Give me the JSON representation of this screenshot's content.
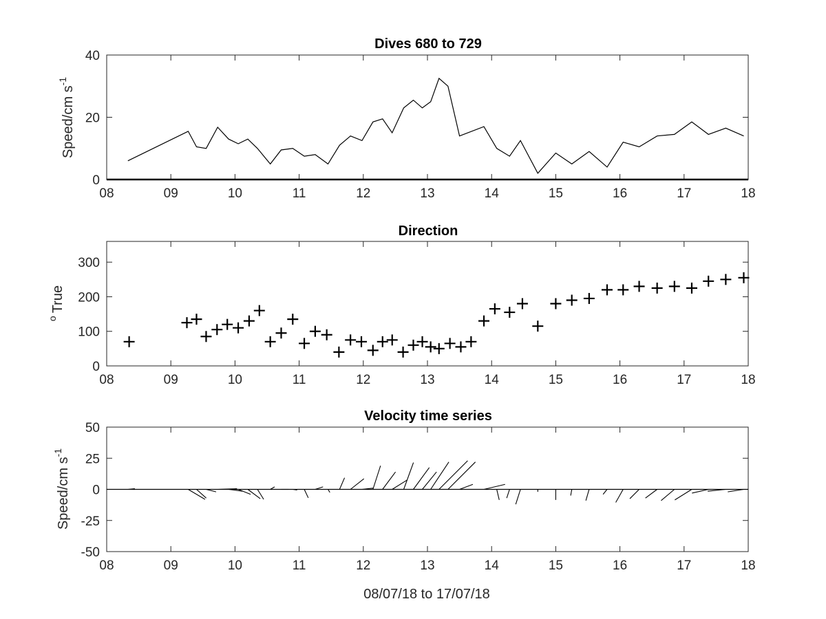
{
  "chart_data": [
    {
      "type": "line",
      "title": "Dives 680 to 729",
      "ylabel": "Speed/cm s",
      "ylabel_superscript": "-1",
      "xlabel": "",
      "xlim": [
        8,
        18
      ],
      "ylim": [
        0,
        40
      ],
      "xticks": [
        "08",
        "09",
        "10",
        "11",
        "12",
        "13",
        "14",
        "15",
        "16",
        "17",
        "18"
      ],
      "yticks": [
        "0",
        "20",
        "40"
      ],
      "grid": false,
      "series": [
        {
          "x": [
            8.33,
            9.27,
            9.4,
            9.55,
            9.73,
            9.9,
            10.05,
            10.2,
            10.35,
            10.55,
            10.72,
            10.9,
            11.08,
            11.25,
            11.45,
            11.63,
            11.8,
            11.98,
            12.15,
            12.3,
            12.45,
            12.63,
            12.78,
            12.92,
            13.05,
            13.18,
            13.32,
            13.5,
            13.88,
            14.08,
            14.28,
            14.45,
            14.72,
            15.0,
            15.25,
            15.52,
            15.8,
            16.05,
            16.3,
            16.58,
            16.85,
            17.12,
            17.38,
            17.65,
            17.93
          ],
          "y": [
            6,
            15.5,
            10.5,
            10,
            16.8,
            13,
            11.5,
            13,
            10,
            5,
            9.5,
            10,
            7.5,
            8,
            5,
            11,
            14,
            12.5,
            18.5,
            19.5,
            15,
            23,
            25.5,
            23,
            25,
            32.5,
            30,
            14,
            17,
            10,
            7.5,
            12.5,
            2,
            8.5,
            5,
            9,
            4,
            12,
            10.5,
            14,
            14.5,
            18.5,
            14.5,
            16.5,
            14
          ]
        }
      ]
    },
    {
      "type": "scatter",
      "title": "Direction",
      "ylabel": "True",
      "ylabel_prefix": "o",
      "xlabel": "",
      "xlim": [
        8,
        18
      ],
      "ylim": [
        0,
        360
      ],
      "xticks": [
        "08",
        "09",
        "10",
        "11",
        "12",
        "13",
        "14",
        "15",
        "16",
        "17",
        "18"
      ],
      "yticks": [
        "0",
        "100",
        "200",
        "300"
      ],
      "marker": "+",
      "grid": false,
      "series": [
        {
          "x": [
            8.35,
            9.25,
            9.4,
            9.55,
            9.72,
            9.88,
            10.05,
            10.22,
            10.38,
            10.55,
            10.72,
            10.9,
            11.08,
            11.25,
            11.43,
            11.62,
            11.8,
            11.97,
            12.15,
            12.3,
            12.45,
            12.62,
            12.78,
            12.92,
            13.05,
            13.18,
            13.35,
            13.52,
            13.68,
            13.88,
            14.05,
            14.28,
            14.48,
            14.72,
            15.0,
            15.25,
            15.52,
            15.8,
            16.05,
            16.3,
            16.58,
            16.85,
            17.12,
            17.38,
            17.65,
            17.93
          ],
          "y": [
            70,
            125,
            135,
            85,
            105,
            120,
            110,
            130,
            160,
            70,
            95,
            135,
            65,
            100,
            90,
            40,
            75,
            70,
            45,
            70,
            75,
            40,
            60,
            70,
            55,
            50,
            65,
            55,
            70,
            130,
            165,
            155,
            180,
            115,
            180,
            190,
            195,
            220,
            220,
            230,
            225,
            230,
            225,
            245,
            250,
            255
          ]
        }
      ]
    },
    {
      "type": "line",
      "subtype": "feather",
      "title": "Velocity time series",
      "ylabel": "Speed/cm s",
      "ylabel_superscript": "-1",
      "xlabel": "08/07/18 to 17/07/18",
      "xlim": [
        8,
        18
      ],
      "ylim": [
        -50,
        50
      ],
      "xticks": [
        "08",
        "09",
        "10",
        "11",
        "12",
        "13",
        "14",
        "15",
        "16",
        "17",
        "18"
      ],
      "yticks": [
        "50",
        "25",
        "0",
        "-25",
        "-50"
      ],
      "grid": false,
      "series": [
        {
          "x": [
            8.33,
            9.27,
            9.4,
            9.55,
            9.73,
            9.9,
            10.05,
            10.2,
            10.35,
            10.55,
            10.72,
            10.9,
            11.08,
            11.25,
            11.45,
            11.63,
            11.8,
            11.98,
            12.15,
            12.3,
            12.45,
            12.63,
            12.78,
            12.92,
            13.05,
            13.18,
            13.32,
            13.5,
            13.88,
            14.08,
            14.28,
            14.45,
            14.72,
            15.0,
            15.25,
            15.52,
            15.8,
            16.05,
            16.3,
            16.58,
            16.85,
            17.12,
            17.38,
            17.65,
            17.93
          ],
          "u": [
            5.6,
            13.5,
            7.8,
            8,
            15.5,
            11.2,
            10,
            10,
            5,
            3.5,
            6,
            3.5,
            3.2,
            6.3,
            1.5,
            4,
            10.8,
            8.9,
            6.1,
            10.4,
            12,
            7.8,
            12.8,
            11.4,
            14.6,
            23,
            22,
            10.7,
            17,
            2,
            -2.3,
            -3.8,
            0,
            0,
            -0.9,
            -2.6,
            -3.2,
            -5.9,
            -7.5,
            -9.4,
            -10.7,
            -13.6,
            -13.2,
            -14.5,
            -12.8
          ],
          "v": [
            0.5,
            -8,
            -7,
            -2,
            0.5,
            -1.5,
            -4,
            -7.5,
            -8,
            2,
            0,
            -0.5,
            -6.8,
            2,
            -2.5,
            9.3,
            8.5,
            1,
            19,
            14,
            7.5,
            21.5,
            17.5,
            14,
            22,
            23,
            22,
            4,
            4,
            -8.5,
            -7,
            -12,
            -2,
            -8.5,
            -5,
            -9,
            -4,
            -10.5,
            -7.5,
            -7,
            -9,
            -8.5,
            -3,
            -1.5,
            -2
          ]
        }
      ]
    }
  ]
}
